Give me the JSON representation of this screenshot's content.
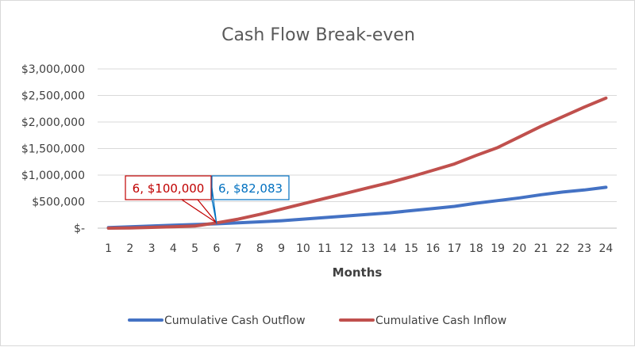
{
  "chart_data": {
    "type": "line",
    "title": "Cash Flow Break-even",
    "xlabel": "Months",
    "ylabel": "",
    "x": [
      1,
      2,
      3,
      4,
      5,
      6,
      7,
      8,
      9,
      10,
      11,
      12,
      13,
      14,
      15,
      16,
      17,
      18,
      19,
      20,
      21,
      22,
      23,
      24
    ],
    "x_tick_labels": [
      "1",
      "2",
      "3",
      "4",
      "5",
      "6",
      "7",
      "8",
      "9",
      "10",
      "11",
      "12",
      "13",
      "14",
      "15",
      "16",
      "17",
      "18",
      "19",
      "20",
      "21",
      "22",
      "23",
      "24"
    ],
    "ylim": [
      0,
      3000000
    ],
    "y_ticks": [
      0,
      500000,
      1000000,
      1500000,
      2000000,
      2500000,
      3000000
    ],
    "y_tick_labels": [
      "$-",
      "$500,000",
      "$1,000,000",
      "$1,500,000",
      "$2,000,000",
      "$2,500,000",
      "$3,000,000"
    ],
    "grid": true,
    "legend_position": "bottom",
    "series": [
      {
        "name": "Cumulative Cash Outflow",
        "color": "#4472C4",
        "values": [
          10000,
          25000,
          40000,
          55000,
          68000,
          82083,
          100000,
          120000,
          140000,
          170000,
          200000,
          230000,
          260000,
          290000,
          330000,
          370000,
          410000,
          470000,
          520000,
          570000,
          630000,
          680000,
          720000,
          770000
        ]
      },
      {
        "name": "Cumulative Cash Inflow",
        "color": "#C0504D",
        "values": [
          0,
          5000,
          15000,
          25000,
          40000,
          100000,
          170000,
          260000,
          360000,
          460000,
          560000,
          660000,
          760000,
          860000,
          970000,
          1090000,
          1210000,
          1370000,
          1520000,
          1720000,
          1920000,
          2100000,
          2280000,
          2450000
        ]
      }
    ],
    "annotations": [
      {
        "text": "6,  $100,000",
        "series": 1,
        "x": 6,
        "y": 100000,
        "color": "#C00000"
      },
      {
        "text": "6,  $82,083",
        "series": 0,
        "x": 6,
        "y": 82083,
        "color": "#0070C0"
      }
    ]
  }
}
